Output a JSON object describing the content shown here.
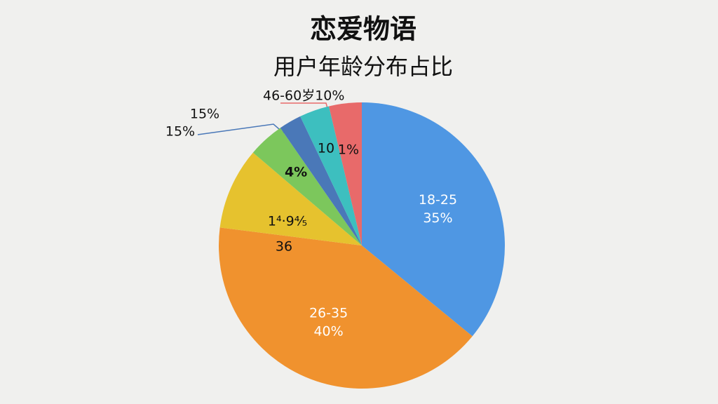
{
  "chart_data": {
    "type": "pie",
    "title": "恋爱物语",
    "subtitle": "用户年龄分布占比",
    "categories": [
      "18-25",
      "26-35",
      null,
      null,
      null,
      null,
      null
    ],
    "values": [
      35,
      40,
      9,
      4,
      2.5,
      3.3,
      3.6
    ],
    "value_labels": [
      "35%",
      "40%",
      null,
      "4%",
      null,
      null,
      null
    ],
    "colors": [
      "#4f97e3",
      "#f0922e",
      "#e6c22e",
      "#7cc75c",
      "#4a78b8",
      "#3dbfbf",
      "#e86a6a"
    ],
    "annotations": [
      "46-60岁10%",
      "15%",
      "15%",
      "10",
      "1%",
      "1⁴·9⅘",
      "36"
    ]
  }
}
